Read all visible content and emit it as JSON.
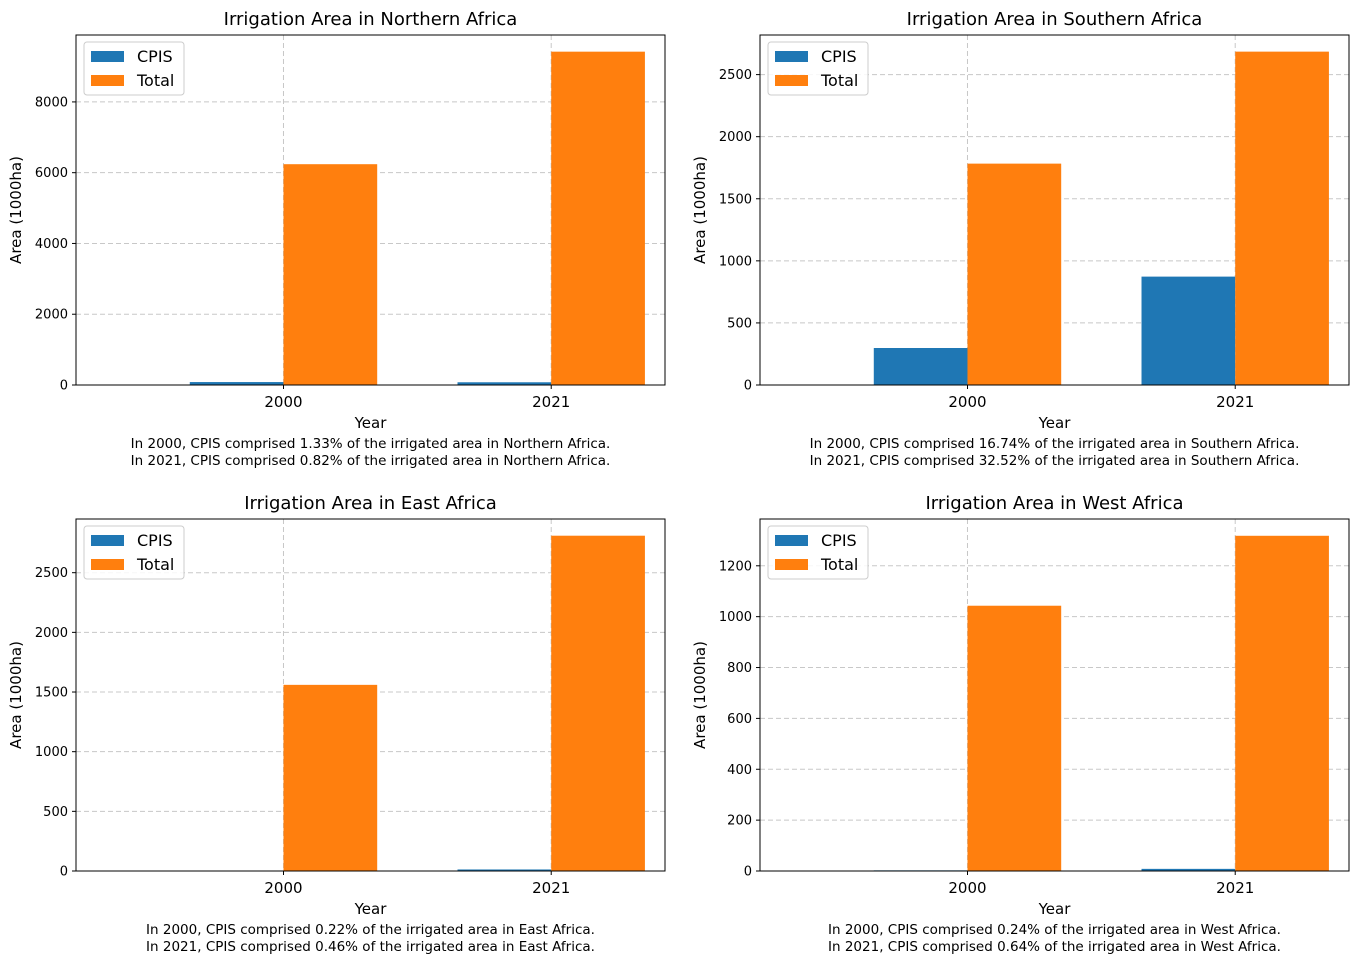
{
  "colors": {
    "cpis": "#1f77b4",
    "total": "#ff7f0e"
  },
  "chart_data": [
    {
      "type": "bar",
      "title": "Irrigation Area in Northern Africa",
      "xlabel": "Year",
      "ylabel": "Area (1000ha)",
      "categories": [
        "2000",
        "2021"
      ],
      "series": [
        {
          "name": "CPIS",
          "values": [
            83,
            77
          ]
        },
        {
          "name": "Total",
          "values": [
            6240,
            9420
          ]
        }
      ],
      "ylim": [
        0,
        9891
      ],
      "yticks": [
        0,
        2000,
        4000,
        6000,
        8000
      ],
      "grid": true,
      "legend": "top-left",
      "notes": [
        "In 2000, CPIS comprised 1.33% of the irrigated area in Northern Africa.",
        "In 2021, CPIS comprised 0.82% of the irrigated area in Northern Africa."
      ]
    },
    {
      "type": "bar",
      "title": "Irrigation Area in Southern Africa",
      "xlabel": "Year",
      "ylabel": "Area (1000ha)",
      "categories": [
        "2000",
        "2021"
      ],
      "series": [
        {
          "name": "CPIS",
          "values": [
            298,
            873
          ]
        },
        {
          "name": "Total",
          "values": [
            1783,
            2685
          ]
        }
      ],
      "ylim": [
        0,
        2819
      ],
      "yticks": [
        0,
        500,
        1000,
        1500,
        2000,
        2500
      ],
      "grid": true,
      "legend": "top-left",
      "notes": [
        "In 2000, CPIS comprised 16.74% of the irrigated area in Southern Africa.",
        "In 2021, CPIS comprised 32.52% of the irrigated area in Southern Africa."
      ]
    },
    {
      "type": "bar",
      "title": "Irrigation Area in East Africa",
      "xlabel": "Year",
      "ylabel": "Area (1000ha)",
      "categories": [
        "2000",
        "2021"
      ],
      "series": [
        {
          "name": "CPIS",
          "values": [
            3.4,
            12.9
          ]
        },
        {
          "name": "Total",
          "values": [
            1560,
            2810
          ]
        }
      ],
      "ylim": [
        0,
        2950
      ],
      "yticks": [
        0,
        500,
        1000,
        1500,
        2000,
        2500
      ],
      "grid": true,
      "legend": "top-left",
      "notes": [
        "In 2000, CPIS comprised 0.22% of the irrigated area in East Africa.",
        "In 2021, CPIS comprised 0.46% of the irrigated area in East Africa."
      ]
    },
    {
      "type": "bar",
      "title": "Irrigation Area in West Africa",
      "xlabel": "Year",
      "ylabel": "Area (1000ha)",
      "categories": [
        "2000",
        "2021"
      ],
      "series": [
        {
          "name": "CPIS",
          "values": [
            2.5,
            8.4
          ]
        },
        {
          "name": "Total",
          "values": [
            1043,
            1318
          ]
        }
      ],
      "ylim": [
        0,
        1384
      ],
      "yticks": [
        0,
        200,
        400,
        600,
        800,
        1000,
        1200
      ],
      "grid": true,
      "legend": "top-left",
      "notes": [
        "In 2000, CPIS comprised 0.24% of the irrigated area in West Africa.",
        "In 2021, CPIS comprised 0.64% of the irrigated area in West Africa."
      ]
    }
  ]
}
